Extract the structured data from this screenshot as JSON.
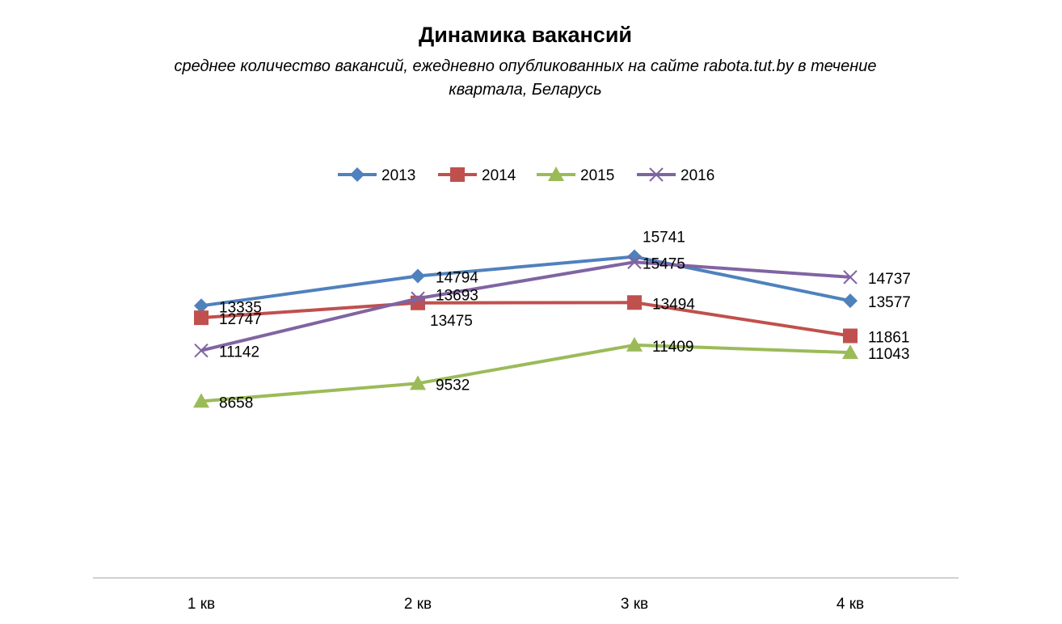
{
  "chart_data": {
    "type": "line",
    "title": "Динамика вакансий",
    "subtitle": "среднее количество  вакансий, ежедневно опубликованных на сайте rabota.tut.by  в течение квартала, Беларусь",
    "categories": [
      "1 кв",
      "2 кв",
      "3 кв",
      "4 кв"
    ],
    "ylim": [
      0,
      20000
    ],
    "grid": false,
    "legend": "top",
    "data_labels": true,
    "series": [
      {
        "name": "2013",
        "color": "#4F81BD",
        "marker": "diamond",
        "values": [
          13335,
          14794,
          15741,
          13577
        ]
      },
      {
        "name": "2014",
        "color": "#C0504D",
        "marker": "square",
        "values": [
          12747,
          13475,
          13494,
          11861
        ]
      },
      {
        "name": "2015",
        "color": "#9BBB59",
        "marker": "triangle",
        "values": [
          8658,
          9532,
          11409,
          11043
        ]
      },
      {
        "name": "2016",
        "color": "#8064A2",
        "marker": "x",
        "values": [
          11142,
          13693,
          15475,
          14737
        ]
      }
    ]
  }
}
